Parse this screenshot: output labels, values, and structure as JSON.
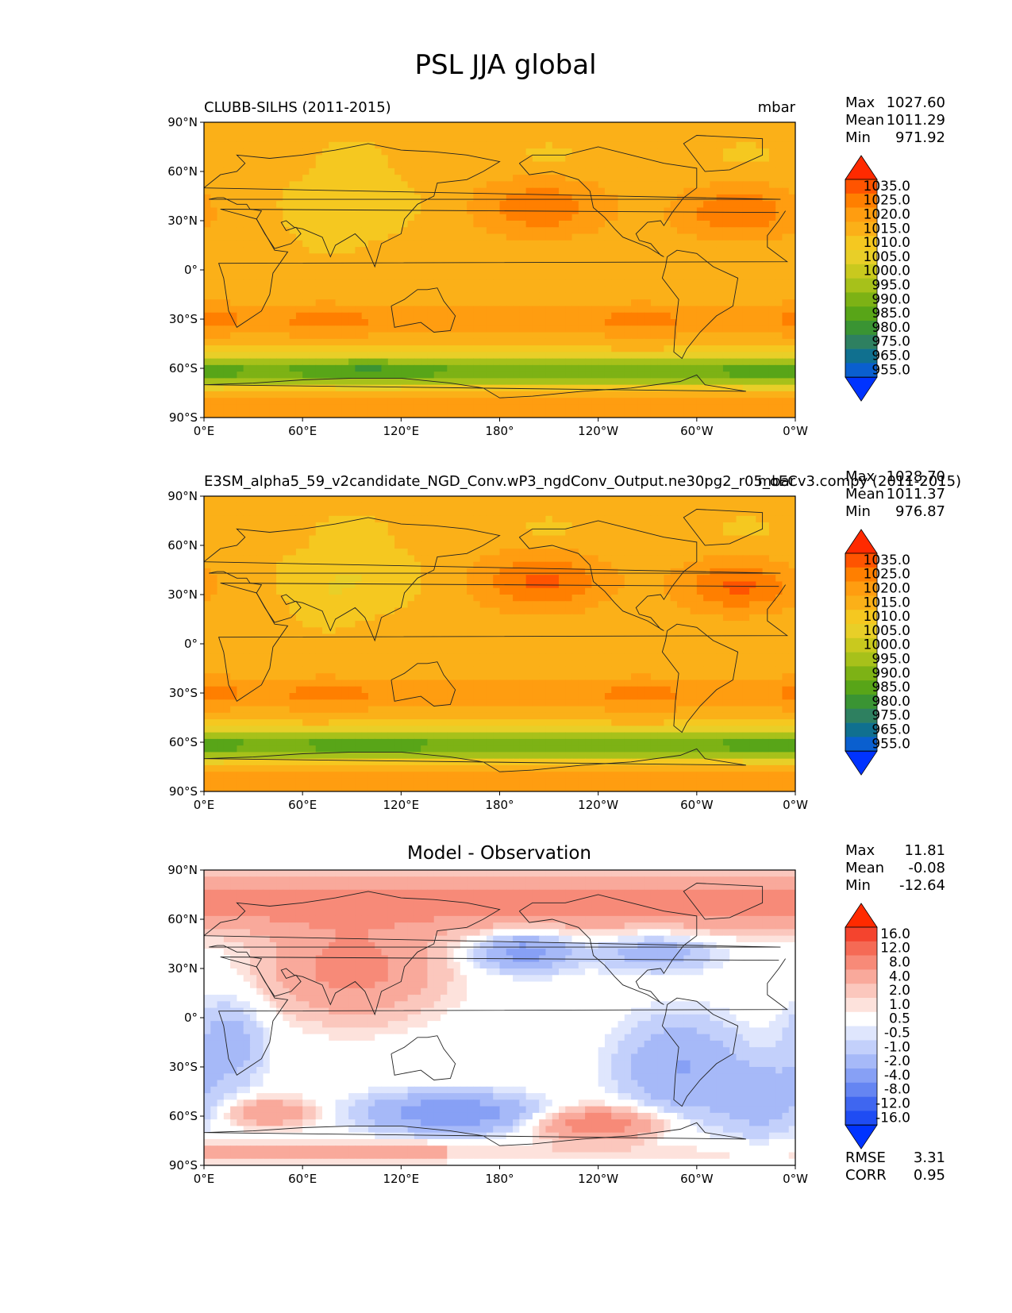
{
  "title": "PSL JJA global",
  "colors": {
    "land": "none",
    "coast": "#222222"
  },
  "chart_data": [
    {
      "type": "heatmap",
      "id": "panel1",
      "title": "CLUBB-SILHS (2011-2015)",
      "units": "mbar",
      "center_title": "",
      "stats": [
        {
          "label": "Max",
          "value": "1027.60"
        },
        {
          "label": "Mean",
          "value": "1011.29"
        },
        {
          "label": "Min",
          "value": "971.92"
        }
      ],
      "extra_stats": [],
      "xlim": [
        0,
        360
      ],
      "ylim": [
        -90,
        90
      ],
      "x_ticks": [
        "0°E",
        "60°E",
        "120°E",
        "180°",
        "120°W",
        "60°W",
        "0°W"
      ],
      "y_ticks": [
        "90°N",
        "60°N",
        "30°N",
        "0°",
        "30°S",
        "60°S",
        "90°S"
      ],
      "colorbar": {
        "labels": [
          "1035.0",
          "1025.0",
          "1020.0",
          "1015.0",
          "1010.0",
          "1005.0",
          "1000.0",
          "995.0",
          "990.0",
          "985.0",
          "980.0",
          "975.0",
          "965.0",
          "955.0"
        ],
        "colors": [
          "#ff2a00",
          "#ff5400",
          "#ff7f00",
          "#ff9d10",
          "#fbb018",
          "#f5c820",
          "#e8cf28",
          "#c9c91e",
          "#a7c11a",
          "#7db215",
          "#58a518",
          "#3a9433",
          "#2e8060",
          "#10708f",
          "#0a5fcf",
          "#0048ff"
        ],
        "top_extend": "#ff2a00",
        "bottom_extend": "#0033ff"
      },
      "field": "psl_obs"
    },
    {
      "type": "heatmap",
      "id": "panel2",
      "title": "E3SM_alpha5_59_v2candidate_NGD_Conv.wP3_ngdConv_Output.ne30pg2_r05_oECv3.compy (2011-2015)",
      "units": "mbar",
      "center_title": "",
      "stats": [
        {
          "label": "Max",
          "value": "1028.70"
        },
        {
          "label": "Mean",
          "value": "1011.37"
        },
        {
          "label": "Min",
          "value": "976.87"
        }
      ],
      "extra_stats": [],
      "xlim": [
        0,
        360
      ],
      "ylim": [
        -90,
        90
      ],
      "x_ticks": [
        "0°E",
        "60°E",
        "120°E",
        "180°",
        "120°W",
        "60°W",
        "0°W"
      ],
      "y_ticks": [
        "90°N",
        "60°N",
        "30°N",
        "0°",
        "30°S",
        "60°S",
        "90°S"
      ],
      "colorbar": {
        "labels": [
          "1035.0",
          "1025.0",
          "1020.0",
          "1015.0",
          "1010.0",
          "1005.0",
          "1000.0",
          "995.0",
          "990.0",
          "985.0",
          "980.0",
          "975.0",
          "965.0",
          "955.0"
        ],
        "colors": [
          "#ff2a00",
          "#ff5400",
          "#ff7f00",
          "#ff9d10",
          "#fbb018",
          "#f5c820",
          "#e8cf28",
          "#c9c91e",
          "#a7c11a",
          "#7db215",
          "#58a518",
          "#3a9433",
          "#2e8060",
          "#10708f",
          "#0a5fcf",
          "#0048ff"
        ],
        "top_extend": "#ff2a00",
        "bottom_extend": "#0033ff"
      },
      "field": "psl_model"
    },
    {
      "type": "heatmap",
      "id": "panel3",
      "title": "",
      "units": "",
      "center_title": "Model - Observation",
      "stats": [
        {
          "label": "Max",
          "value": "11.81"
        },
        {
          "label": "Mean",
          "value": "-0.08"
        },
        {
          "label": "Min",
          "value": "-12.64"
        }
      ],
      "extra_stats": [
        {
          "label": "RMSE",
          "value": "3.31"
        },
        {
          "label": "CORR",
          "value": "0.95"
        }
      ],
      "xlim": [
        0,
        360
      ],
      "ylim": [
        -90,
        90
      ],
      "x_ticks": [
        "0°E",
        "60°E",
        "120°E",
        "180°",
        "120°W",
        "60°W",
        "0°W"
      ],
      "y_ticks": [
        "90°N",
        "60°N",
        "30°N",
        "0°",
        "30°S",
        "60°S",
        "90°S"
      ],
      "colorbar": {
        "labels": [
          "16.0",
          "12.0",
          "8.0",
          "4.0",
          "2.0",
          "1.0",
          "0.5",
          "-0.5",
          "-1.0",
          "-2.0",
          "-4.0",
          "-8.0",
          "-12.0",
          "-16.0"
        ],
        "colors": [
          "#ff2a00",
          "#f4442e",
          "#f56a55",
          "#f78a78",
          "#f9a99b",
          "#fbc7bd",
          "#fde2dc",
          "#ffffff",
          "#dfe6fd",
          "#c3d0fb",
          "#a6b9f8",
          "#87a0f5",
          "#6585f2",
          "#3f66f0",
          "#1f4cf3",
          "#0033ff"
        ],
        "top_extend": "#ff2a00",
        "bottom_extend": "#0033ff"
      },
      "field": "psl_diff"
    }
  ]
}
